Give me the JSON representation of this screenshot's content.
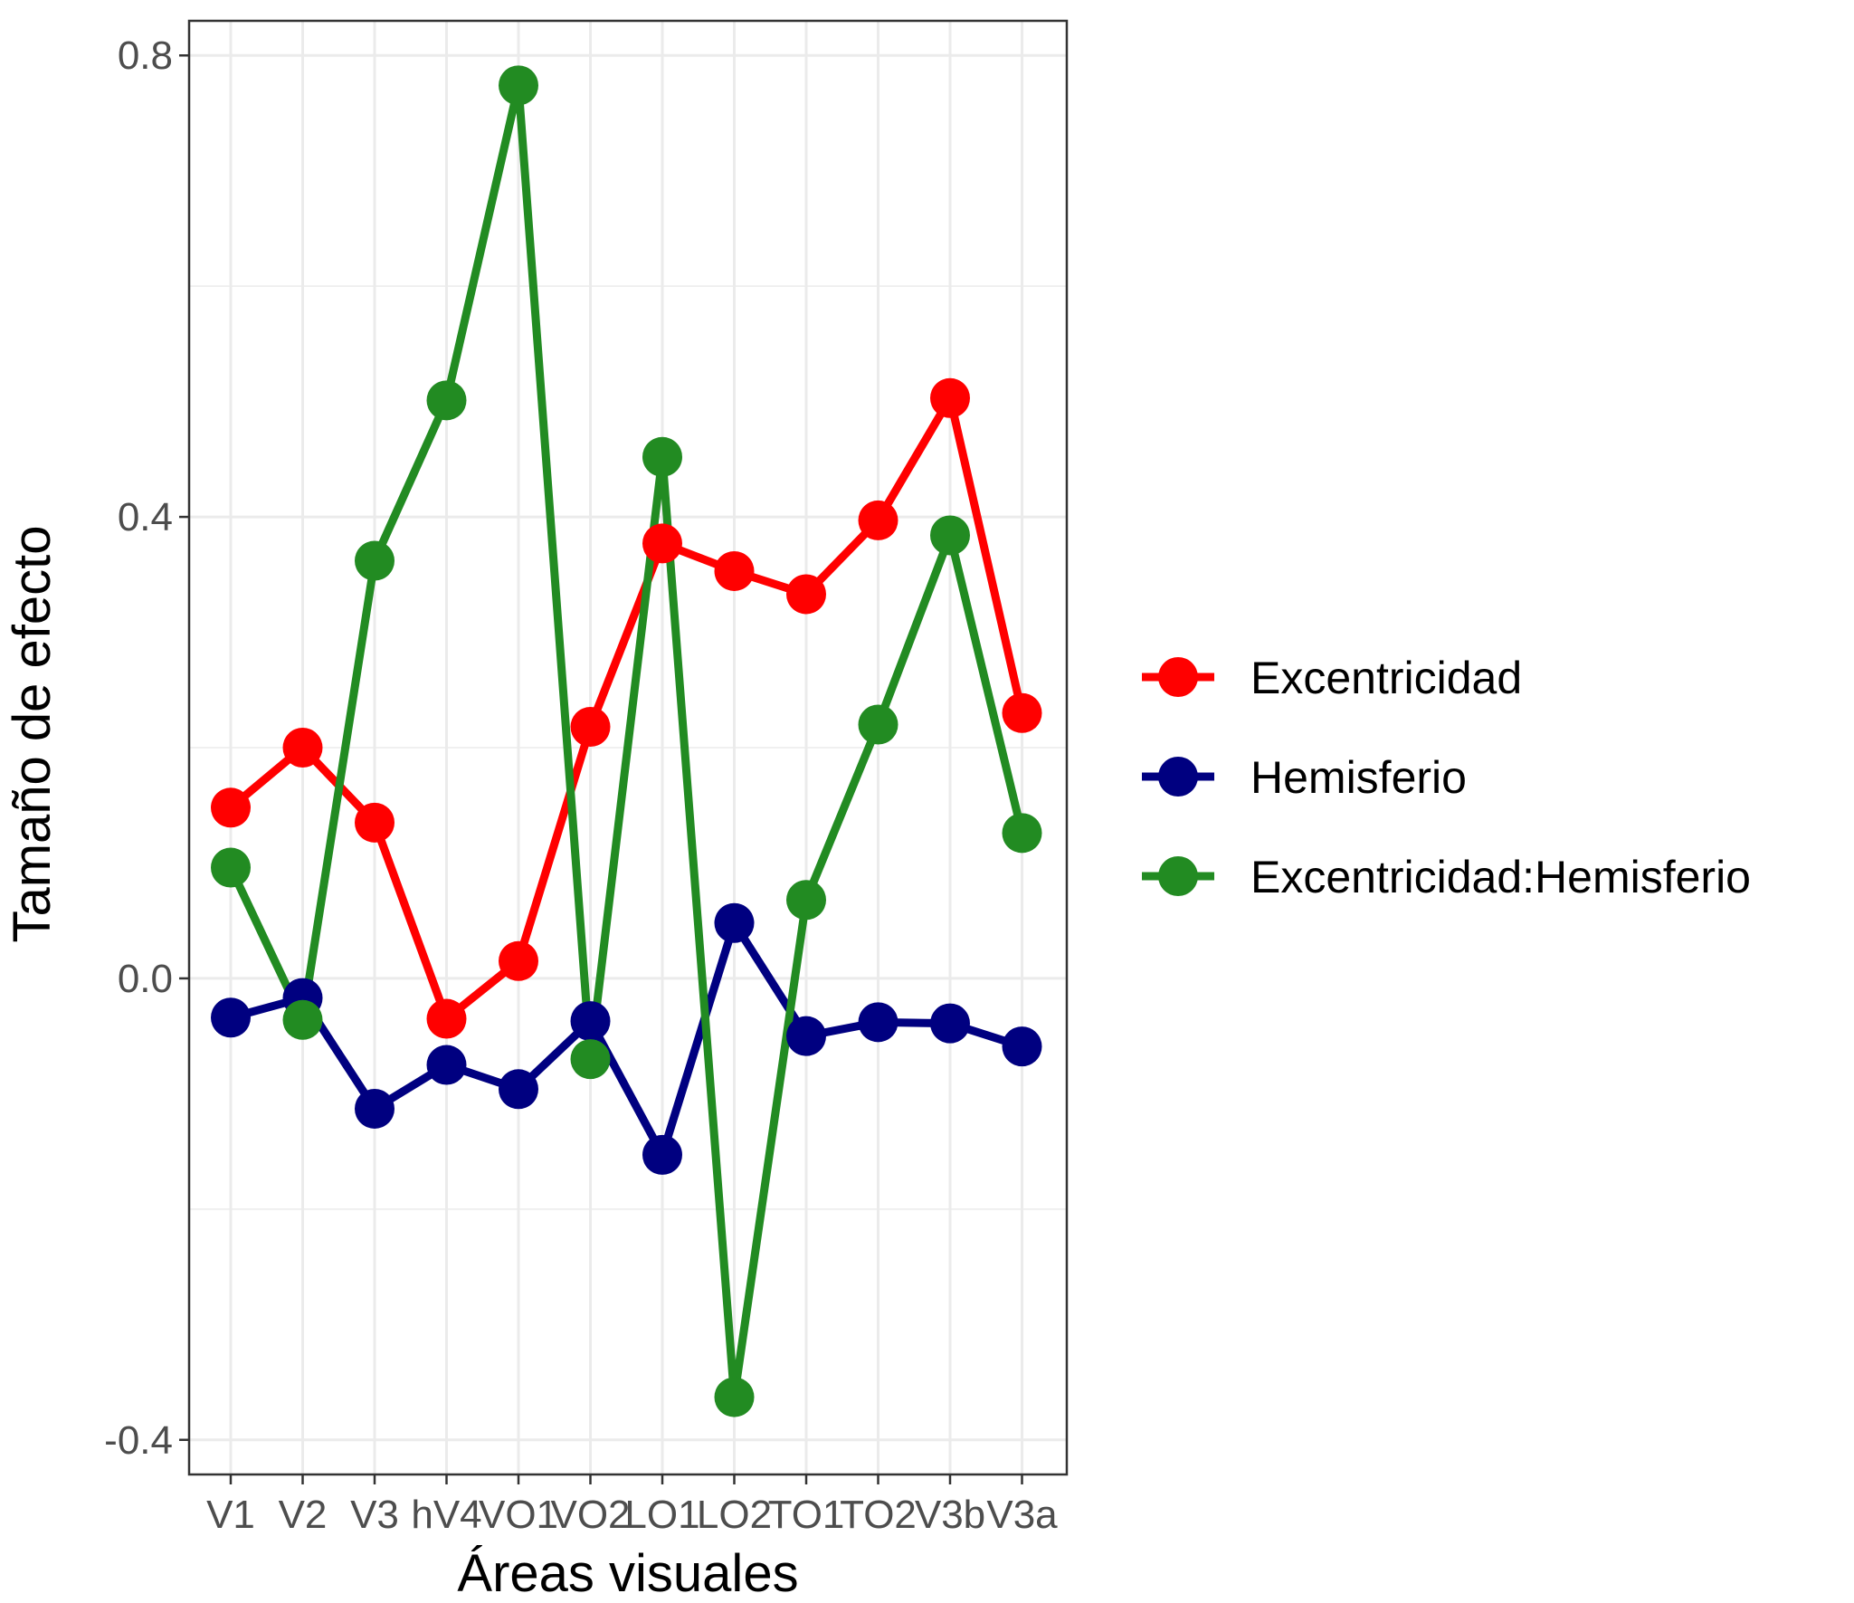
{
  "chart_data": {
    "type": "line",
    "title": "",
    "xlabel": "Áreas visuales",
    "ylabel": "Tamaño de efecto",
    "categories": [
      "V1",
      "V2",
      "V3",
      "hV4",
      "VO1",
      "VO2",
      "LO1",
      "LO2",
      "TO1",
      "TO2",
      "V3b",
      "V3a"
    ],
    "y_ticks": [
      -0.4,
      0.0,
      0.4,
      0.8
    ],
    "y_tick_labels": [
      "-0.4",
      "0.0",
      "0.4",
      "0.8"
    ],
    "ylim": [
      -0.43,
      0.83
    ],
    "grid": true,
    "legend_position": "right",
    "series": [
      {
        "name": "Excentricidad",
        "color": "#ff0000",
        "values": [
          0.148,
          0.2,
          0.135,
          -0.035,
          0.015,
          0.218,
          0.377,
          0.353,
          0.333,
          0.397,
          0.503,
          0.23
        ]
      },
      {
        "name": "Hemisferio",
        "color": "#000080",
        "values": [
          -0.034,
          -0.017,
          -0.113,
          -0.075,
          -0.096,
          -0.037,
          -0.153,
          0.048,
          -0.05,
          -0.038,
          -0.039,
          -0.059
        ]
      },
      {
        "name": "Excentricidad:Hemisferio",
        "color": "#228b22",
        "values": [
          0.096,
          -0.036,
          0.362,
          0.501,
          0.774,
          -0.07,
          0.452,
          -0.363,
          0.068,
          0.22,
          0.384,
          0.126
        ]
      }
    ]
  }
}
